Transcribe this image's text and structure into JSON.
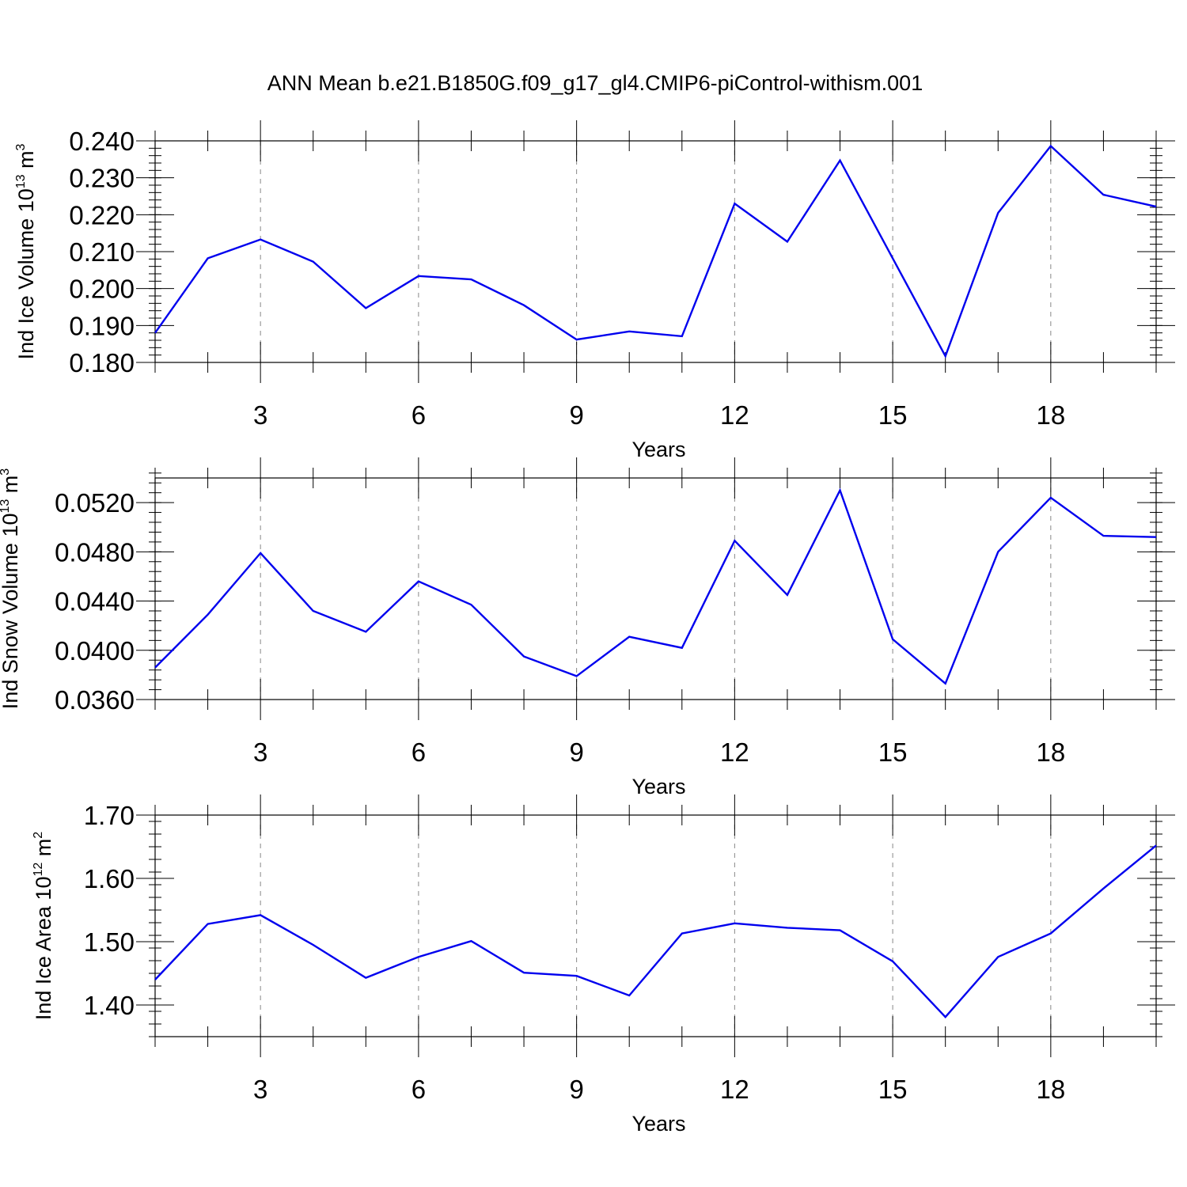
{
  "chart_data": {
    "title": "ANN Mean b.e21.B1850G.f09_g17_gl4.CMIP6-piControl-withism.001",
    "panels": [
      {
        "type": "line",
        "xlabel": "Years",
        "ylabel_main": "Ind Ice Volume 10",
        "ylabel_exp": "13",
        "ylabel_unit": " m",
        "ylabel_unit_exp": "3",
        "xlim": [
          1,
          20
        ],
        "ylim": [
          0.18,
          0.24
        ],
        "x_ticks": [
          3,
          6,
          9,
          12,
          15,
          18
        ],
        "y_ticks": [
          0.18,
          0.19,
          0.2,
          0.21,
          0.22,
          0.23,
          0.24
        ],
        "y_tick_labels": [
          "0.180",
          "0.190",
          "0.200",
          "0.210",
          "0.220",
          "0.230",
          "0.240"
        ],
        "y_minor_step": 0.002,
        "series": [
          {
            "color": "#0000ee",
            "x": [
              1,
              2,
              3,
              4,
              5,
              6,
              7,
              8,
              9,
              10,
              11,
              12,
              13,
              14,
              15,
              16,
              17,
              18,
              19,
              20
            ],
            "values": [
              0.188,
              0.2082,
              0.2133,
              0.2073,
              0.1947,
              0.2034,
              0.2025,
              0.1955,
              0.1862,
              0.1884,
              0.1871,
              0.223,
              0.2127,
              0.2347,
              0.2082,
              0.1817,
              0.2205,
              0.2386,
              0.2254,
              0.2222
            ]
          }
        ]
      },
      {
        "type": "line",
        "xlabel": "Years",
        "ylabel_main": "Ind Snow Volume 10",
        "ylabel_exp": "13",
        "ylabel_unit": " m",
        "ylabel_unit_exp": "3",
        "xlim": [
          1,
          20
        ],
        "ylim": [
          0.036,
          0.054
        ],
        "x_ticks": [
          3,
          6,
          9,
          12,
          15,
          18
        ],
        "y_ticks": [
          0.036,
          0.04,
          0.044,
          0.048,
          0.052
        ],
        "y_tick_labels": [
          "0.0360",
          "0.0400",
          "0.0440",
          "0.0480",
          "0.0520"
        ],
        "y_minor_step": 0.0008,
        "series": [
          {
            "color": "#0000ee",
            "x": [
              1,
              2,
              3,
              4,
              5,
              6,
              7,
              8,
              9,
              10,
              11,
              12,
              13,
              14,
              15,
              16,
              17,
              18,
              19,
              20
            ],
            "values": [
              0.0386,
              0.0429,
              0.0479,
              0.0432,
              0.0415,
              0.0456,
              0.0437,
              0.0395,
              0.0379,
              0.0411,
              0.0402,
              0.0489,
              0.0445,
              0.053,
              0.0409,
              0.0373,
              0.048,
              0.0524,
              0.0493,
              0.0492
            ]
          }
        ]
      },
      {
        "type": "line",
        "xlabel": "Years",
        "ylabel_main": "Ind Ice Area 10",
        "ylabel_exp": "12",
        "ylabel_unit": " m",
        "ylabel_unit_exp": "2",
        "xlim": [
          1,
          20
        ],
        "ylim": [
          1.35,
          1.7
        ],
        "x_ticks": [
          3,
          6,
          9,
          12,
          15,
          18
        ],
        "y_ticks": [
          1.4,
          1.5,
          1.6,
          1.7
        ],
        "y_tick_labels": [
          "1.40",
          "1.50",
          "1.60",
          "1.70"
        ],
        "y_minor_step": 0.02,
        "series": [
          {
            "color": "#0000ee",
            "x": [
              1,
              2,
              3,
              4,
              5,
              6,
              7,
              8,
              9,
              10,
              11,
              12,
              13,
              14,
              15,
              16,
              17,
              18,
              19,
              20
            ],
            "values": [
              1.44,
              1.528,
              1.542,
              1.495,
              1.443,
              1.476,
              1.501,
              1.451,
              1.446,
              1.415,
              1.513,
              1.529,
              1.522,
              1.518,
              1.469,
              1.381,
              1.476,
              1.513,
              1.584,
              1.652
            ]
          }
        ]
      }
    ]
  }
}
